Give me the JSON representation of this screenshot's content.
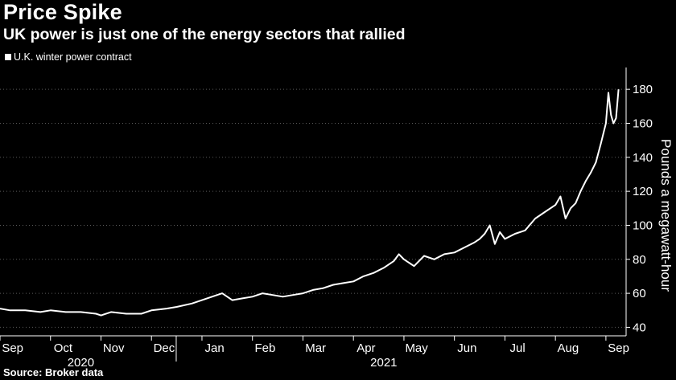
{
  "header": {
    "title": "Price Spike",
    "subtitle": "UK power is just one of the energy sectors that rallied"
  },
  "footer": {
    "source": "Source: Broker data"
  },
  "colors": {
    "background": "#000000",
    "line": "#ffffff",
    "grid": "#5a5a5a"
  },
  "chart_data": {
    "type": "line",
    "title": "Price Spike",
    "subtitle": "UK power is just one of the energy sectors that rallied",
    "xlabel": "",
    "ylabel": "Pounds a megawatt-hour",
    "ylim": [
      35,
      190
    ],
    "yticks": [
      40,
      60,
      80,
      100,
      120,
      140,
      160,
      180
    ],
    "y_axis_side": "right",
    "grid": "horizontal dotted",
    "legend": {
      "position": "top-left",
      "entries": [
        "U.K. winter power contract"
      ]
    },
    "x_range_months": [
      0,
      12.4
    ],
    "month_labels": [
      "Sep",
      "Oct",
      "Nov",
      "Dec",
      "Jan",
      "Feb",
      "Mar",
      "Apr",
      "May",
      "Jun",
      "Jul",
      "Aug",
      "Sep"
    ],
    "year_labels": [
      {
        "label": "2020",
        "month": 1.6
      },
      {
        "label": "2021",
        "month": 7.6
      }
    ],
    "series": [
      {
        "name": "U.K. winter power contract",
        "x": [
          0,
          0.2,
          0.5,
          0.8,
          1.0,
          1.3,
          1.6,
          1.9,
          2.0,
          2.2,
          2.5,
          2.8,
          3.0,
          3.3,
          3.5,
          3.8,
          4.0,
          4.2,
          4.4,
          4.6,
          4.8,
          5.0,
          5.2,
          5.4,
          5.6,
          5.8,
          6.0,
          6.2,
          6.4,
          6.6,
          6.8,
          7.0,
          7.2,
          7.4,
          7.6,
          7.8,
          7.9,
          8.0,
          8.2,
          8.4,
          8.6,
          8.8,
          9.0,
          9.2,
          9.4,
          9.5,
          9.6,
          9.7,
          9.8,
          9.9,
          10.0,
          10.2,
          10.4,
          10.6,
          10.8,
          11.0,
          11.1,
          11.2,
          11.3,
          11.4,
          11.5,
          11.6,
          11.7,
          11.8,
          11.9,
          12.0,
          12.05,
          12.1,
          12.15,
          12.2,
          12.25
        ],
        "values": [
          51,
          50,
          50,
          49,
          50,
          49,
          49,
          48,
          47,
          49,
          48,
          48,
          50,
          51,
          52,
          54,
          56,
          58,
          60,
          56,
          57,
          58,
          60,
          59,
          58,
          59,
          60,
          62,
          63,
          65,
          66,
          67,
          70,
          72,
          75,
          79,
          83,
          80,
          76,
          82,
          80,
          83,
          84,
          87,
          90,
          92,
          95,
          100,
          89,
          96,
          92,
          95,
          97,
          104,
          108,
          112,
          117,
          104,
          110,
          113,
          120,
          126,
          131,
          137,
          148,
          160,
          178,
          165,
          160,
          163,
          180
        ]
      }
    ]
  }
}
